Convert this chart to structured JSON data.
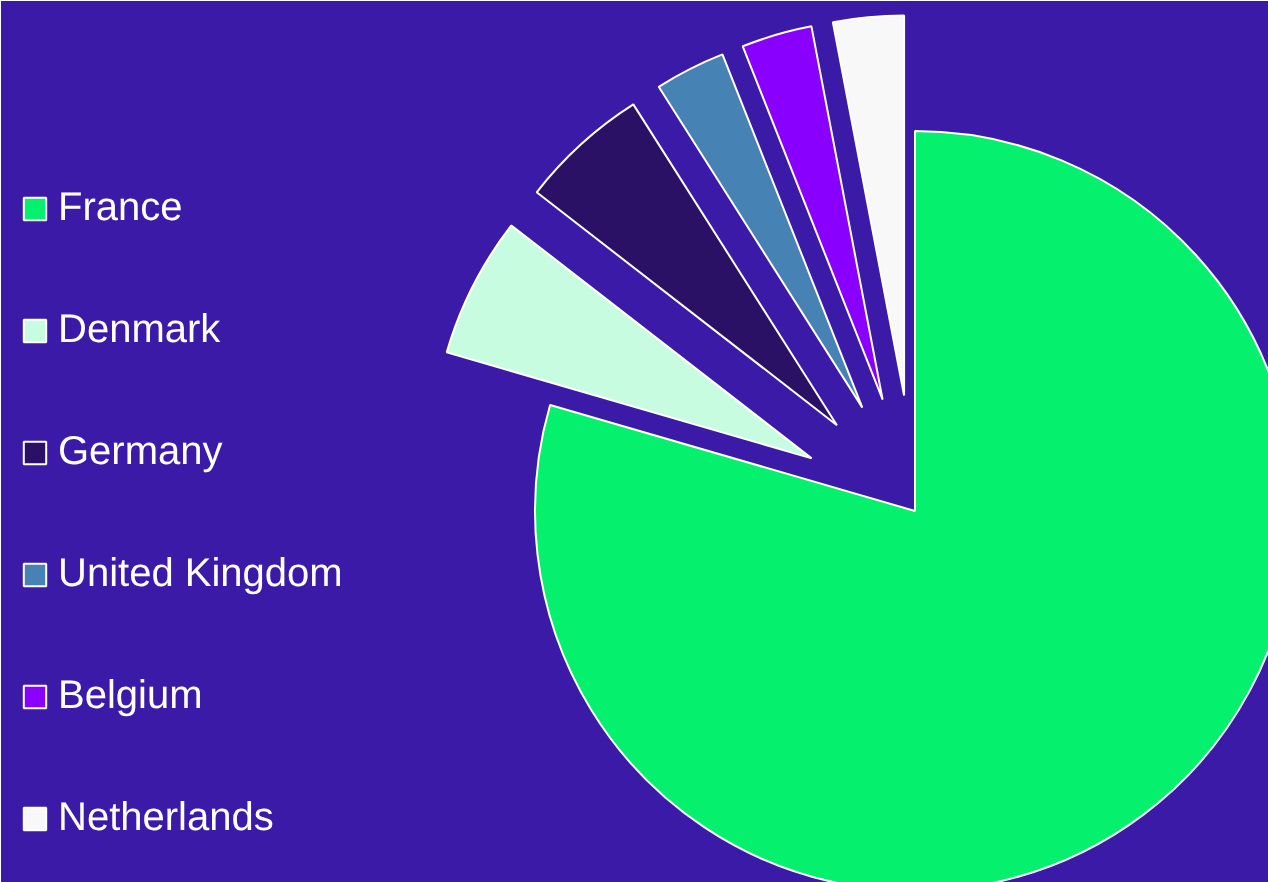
{
  "chart_data": {
    "type": "pie",
    "categories": [
      "France",
      "Denmark",
      "Germany",
      "United Kingdom",
      "Belgium",
      "Netherlands"
    ],
    "values": [
      79.5,
      6,
      5.5,
      3,
      3,
      3
    ],
    "colors": [
      "#05f06c",
      "#c8fce0",
      "#2a1166",
      "#4682b4",
      "#8a00ff",
      "#f8f8f8"
    ],
    "legend": "left"
  }
}
